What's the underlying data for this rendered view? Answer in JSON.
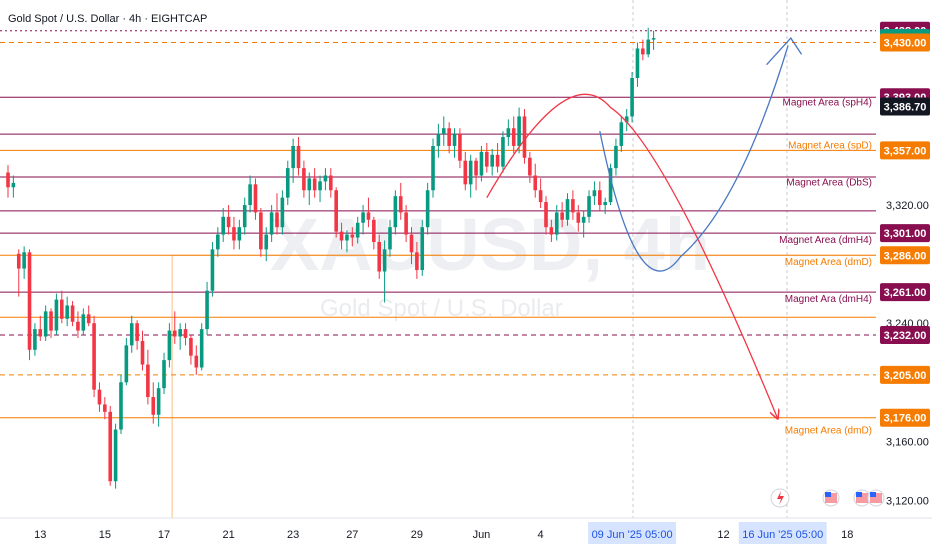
{
  "header": {
    "title": "Gold Spot / U.S. Dollar · 4h · EIGHTCAP"
  },
  "watermark": {
    "symbol": "XAUUSD, 4h",
    "name": "Gold Spot / U.S. Dollar"
  },
  "colors": {
    "bull": "#089981",
    "bear": "#f23645",
    "dark_red": "#880e4f",
    "orange": "#f57c00",
    "blue": "#2962ff"
  },
  "chart_data": {
    "type": "candlestick",
    "title": "Gold Spot / U.S. Dollar · 4h · EIGHTCAP",
    "ylim": [
      3100,
      3450
    ],
    "y_ticks": [
      3120,
      3160,
      3240,
      3320
    ],
    "y_tick_labels": [
      "3,120.00",
      "3,160.00",
      "3,240.00",
      "3,320.00"
    ],
    "x_ticks": [
      {
        "label": "13",
        "bar": 6
      },
      {
        "label": "15",
        "bar": 18
      },
      {
        "label": "17",
        "bar": 29
      },
      {
        "label": "21",
        "bar": 41
      },
      {
        "label": "23",
        "bar": 53
      },
      {
        "label": "27",
        "bar": 64
      },
      {
        "label": "29",
        "bar": 76
      },
      {
        "label": "Jun",
        "bar": 88
      },
      {
        "label": "4",
        "bar": 99
      },
      {
        "label": "12",
        "bar": 133
      },
      {
        "label": "18",
        "bar": 156
      }
    ],
    "x_highlights": [
      {
        "label": "09 Jun '25   05:00",
        "bar": 116
      },
      {
        "label": "16 Jun '25   05:00",
        "bar": 144
      }
    ],
    "levels": [
      {
        "price": 3438.0,
        "label": "3,438.00",
        "color": "#880e4f",
        "style": "dotted"
      },
      {
        "price": 3433.07,
        "label": "3,433.07",
        "color": "#089981",
        "style": "none"
      },
      {
        "price": 3430.0,
        "label": "3,430.00",
        "color": "#f57c00",
        "style": "dashed"
      },
      {
        "price": 3393.0,
        "label": "3,393.00",
        "color": "#880e4f",
        "style": "solid",
        "zone": "Magnet Area (spH4)"
      },
      {
        "price": 3386.7,
        "label": "3,386.70",
        "color": "#131722",
        "style": "none"
      },
      {
        "price": 3357.0,
        "label": "3,357.00",
        "color": "#f57c00",
        "style": "solid",
        "zone": "Magnet Area (spD)"
      },
      {
        "price": 3301.0,
        "label": "3,301.00",
        "color": "#880e4f",
        "style": "solid",
        "zone": "Magnet Area (dmH4)"
      },
      {
        "price": 3286.0,
        "label": "3,286.00",
        "color": "#f57c00",
        "style": "solid",
        "zone": "Magnet Area (dmD)"
      },
      {
        "price": 3261.0,
        "label": "3,261.00",
        "color": "#880e4f",
        "style": "solid",
        "zone": "Magnet Ara (dmH4)"
      },
      {
        "price": 3232.0,
        "label": "3,232.00",
        "color": "#880e4f",
        "style": "dashed"
      },
      {
        "price": 3205.0,
        "label": "3,205.00",
        "color": "#f57c00",
        "style": "dashed"
      },
      {
        "price": 3176.0,
        "label": "3,176.00",
        "color": "#f57c00",
        "style": "solid",
        "zone": "Magnet Area (dmD)"
      }
    ],
    "extra_lines": [
      {
        "price": 3368,
        "color": "#880e4f"
      },
      {
        "price": 3339,
        "color": "#880e4f"
      },
      {
        "price": 3316,
        "color": "#880e4f"
      },
      {
        "price": 3244,
        "color": "#f57c00"
      }
    ],
    "zone_labels": [
      {
        "text": "Magnet Area (spH4)",
        "price": 3390,
        "color": "#880e4f"
      },
      {
        "text": "Magnet Area (spD)",
        "price": 3361,
        "color": "#f57c00"
      },
      {
        "text": "Magnet Area (DbS)",
        "price": 3336,
        "color": "#880e4f"
      },
      {
        "text": "Magnet Area (dmH4)",
        "price": 3297,
        "color": "#880e4f"
      },
      {
        "text": "Magnet Area (dmD)",
        "price": 3282,
        "color": "#f57c00"
      },
      {
        "text": "Magnet Ara (dmH4)",
        "price": 3257,
        "color": "#880e4f"
      },
      {
        "text": "Magnet Area (dmD)",
        "price": 3168,
        "color": "#f57c00"
      }
    ],
    "candles": [
      [
        3342,
        3347,
        3325,
        3332
      ],
      [
        3332,
        3340,
        3325,
        3335
      ],
      [
        3287,
        3290,
        3258,
        3277
      ],
      [
        3277,
        3292,
        3270,
        3288
      ],
      [
        3288,
        3290,
        3215,
        3222
      ],
      [
        3222,
        3240,
        3218,
        3236
      ],
      [
        3236,
        3245,
        3228,
        3231
      ],
      [
        3231,
        3252,
        3228,
        3248
      ],
      [
        3248,
        3250,
        3230,
        3235
      ],
      [
        3235,
        3260,
        3232,
        3256
      ],
      [
        3256,
        3262,
        3240,
        3243
      ],
      [
        3243,
        3258,
        3238,
        3252
      ],
      [
        3252,
        3255,
        3238,
        3241
      ],
      [
        3241,
        3248,
        3230,
        3235
      ],
      [
        3235,
        3250,
        3232,
        3246
      ],
      [
        3246,
        3252,
        3238,
        3240
      ],
      [
        3240,
        3245,
        3190,
        3195
      ],
      [
        3195,
        3200,
        3180,
        3185
      ],
      [
        3185,
        3190,
        3175,
        3180
      ],
      [
        3180,
        3184,
        3130,
        3133
      ],
      [
        3133,
        3172,
        3128,
        3168
      ],
      [
        3168,
        3205,
        3165,
        3200
      ],
      [
        3200,
        3230,
        3198,
        3225
      ],
      [
        3225,
        3245,
        3220,
        3240
      ],
      [
        3240,
        3242,
        3222,
        3228
      ],
      [
        3228,
        3235,
        3208,
        3212
      ],
      [
        3212,
        3222,
        3185,
        3190
      ],
      [
        3190,
        3200,
        3172,
        3178
      ],
      [
        3178,
        3200,
        3170,
        3196
      ],
      [
        3196,
        3220,
        3192,
        3215
      ],
      [
        3215,
        3240,
        3210,
        3235
      ],
      [
        3235,
        3248,
        3226,
        3231
      ],
      [
        3231,
        3240,
        3222,
        3236
      ],
      [
        3236,
        3240,
        3225,
        3230
      ],
      [
        3230,
        3232,
        3212,
        3218
      ],
      [
        3218,
        3225,
        3205,
        3210
      ],
      [
        3210,
        3240,
        3208,
        3236
      ],
      [
        3236,
        3268,
        3232,
        3262
      ],
      [
        3262,
        3295,
        3258,
        3290
      ],
      [
        3290,
        3305,
        3285,
        3300
      ],
      [
        3300,
        3318,
        3295,
        3312
      ],
      [
        3312,
        3320,
        3300,
        3305
      ],
      [
        3305,
        3312,
        3290,
        3296
      ],
      [
        3296,
        3310,
        3290,
        3305
      ],
      [
        3305,
        3325,
        3300,
        3320
      ],
      [
        3320,
        3340,
        3315,
        3334
      ],
      [
        3334,
        3338,
        3310,
        3315
      ],
      [
        3315,
        3318,
        3285,
        3290
      ],
      [
        3290,
        3305,
        3282,
        3300
      ],
      [
        3300,
        3320,
        3295,
        3315
      ],
      [
        3315,
        3328,
        3300,
        3305
      ],
      [
        3305,
        3330,
        3300,
        3325
      ],
      [
        3325,
        3350,
        3320,
        3345
      ],
      [
        3345,
        3365,
        3335,
        3360
      ],
      [
        3360,
        3366,
        3340,
        3345
      ],
      [
        3345,
        3350,
        3325,
        3330
      ],
      [
        3330,
        3342,
        3320,
        3338
      ],
      [
        3338,
        3345,
        3325,
        3330
      ],
      [
        3330,
        3340,
        3322,
        3336
      ],
      [
        3336,
        3345,
        3330,
        3340
      ],
      [
        3340,
        3345,
        3325,
        3330
      ],
      [
        3330,
        3332,
        3298,
        3302
      ],
      [
        3302,
        3308,
        3290,
        3296
      ],
      [
        3296,
        3303,
        3288,
        3300
      ],
      [
        3300,
        3305,
        3292,
        3298
      ],
      [
        3298,
        3312,
        3294,
        3308
      ],
      [
        3308,
        3320,
        3300,
        3315
      ],
      [
        3315,
        3325,
        3305,
        3310
      ],
      [
        3310,
        3312,
        3290,
        3295
      ],
      [
        3295,
        3300,
        3270,
        3275
      ],
      [
        3275,
        3296,
        3254,
        3290
      ],
      [
        3290,
        3310,
        3285,
        3305
      ],
      [
        3305,
        3330,
        3300,
        3326
      ],
      [
        3326,
        3335,
        3310,
        3315
      ],
      [
        3315,
        3320,
        3295,
        3300
      ],
      [
        3300,
        3305,
        3280,
        3288
      ],
      [
        3288,
        3295,
        3270,
        3276
      ],
      [
        3276,
        3310,
        3272,
        3305
      ],
      [
        3305,
        3335,
        3300,
        3330
      ],
      [
        3330,
        3365,
        3325,
        3360
      ],
      [
        3360,
        3375,
        3352,
        3368
      ],
      [
        3368,
        3380,
        3360,
        3372
      ],
      [
        3372,
        3376,
        3355,
        3360
      ],
      [
        3360,
        3372,
        3352,
        3368
      ],
      [
        3368,
        3372,
        3345,
        3350
      ],
      [
        3350,
        3356,
        3330,
        3334
      ],
      [
        3334,
        3354,
        3325,
        3350
      ],
      [
        3350,
        3352,
        3330,
        3340
      ],
      [
        3340,
        3360,
        3336,
        3356
      ],
      [
        3356,
        3362,
        3342,
        3346
      ],
      [
        3346,
        3358,
        3340,
        3354
      ],
      [
        3354,
        3362,
        3342,
        3346
      ],
      [
        3346,
        3370,
        3342,
        3366
      ],
      [
        3366,
        3378,
        3360,
        3372
      ],
      [
        3372,
        3380,
        3355,
        3360
      ],
      [
        3360,
        3386,
        3355,
        3380
      ],
      [
        3380,
        3385,
        3348,
        3352
      ],
      [
        3352,
        3356,
        3335,
        3340
      ],
      [
        3340,
        3348,
        3325,
        3330
      ],
      [
        3330,
        3338,
        3318,
        3322
      ],
      [
        3322,
        3326,
        3300,
        3305
      ],
      [
        3305,
        3310,
        3295,
        3300
      ],
      [
        3300,
        3320,
        3296,
        3315
      ],
      [
        3315,
        3322,
        3305,
        3310
      ],
      [
        3310,
        3328,
        3306,
        3324
      ],
      [
        3324,
        3330,
        3310,
        3315
      ],
      [
        3315,
        3320,
        3302,
        3308
      ],
      [
        3308,
        3316,
        3298,
        3312
      ],
      [
        3312,
        3330,
        3308,
        3326
      ],
      [
        3326,
        3336,
        3320,
        3330
      ],
      [
        3330,
        3336,
        3316,
        3320
      ],
      [
        3320,
        3325,
        3314,
        3322
      ],
      [
        3322,
        3348,
        3320,
        3345
      ],
      [
        3345,
        3365,
        3340,
        3360
      ],
      [
        3360,
        3380,
        3356,
        3376
      ],
      [
        3376,
        3385,
        3370,
        3380
      ],
      [
        3380,
        3410,
        3376,
        3406
      ],
      [
        3406,
        3430,
        3400,
        3426
      ],
      [
        3426,
        3432,
        3418,
        3422
      ],
      [
        3422,
        3440,
        3420,
        3432
      ],
      [
        3432,
        3438,
        3425,
        3433
      ]
    ]
  }
}
